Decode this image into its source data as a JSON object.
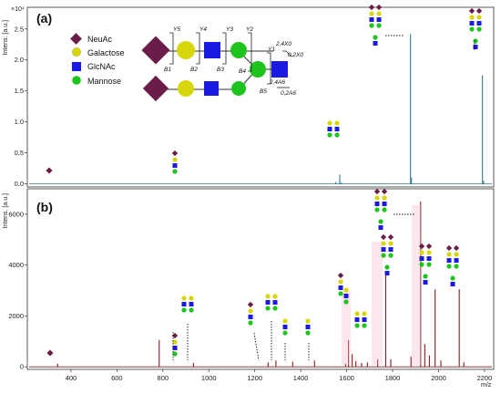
{
  "figure": {
    "panel_a_label": "(a)",
    "panel_b_label": "(b)",
    "legend": [
      {
        "name": "NeuAc",
        "shape": "diamond",
        "color": "#6b1d4a"
      },
      {
        "name": "Galactose",
        "shape": "circle",
        "color": "#d6d60a"
      },
      {
        "name": "GlcNAc",
        "shape": "square",
        "color": "#1a1ae0"
      },
      {
        "name": "Mannose",
        "shape": "circle",
        "color": "#1ec31e"
      }
    ],
    "fragment_labels": [
      "Y5",
      "Y4",
      "Y3",
      "Y2",
      "Y1",
      "B1",
      "B2",
      "B3",
      "B4",
      "B5",
      "2,4X0",
      "0,2X0",
      "2,4A6",
      "0,2A6"
    ]
  },
  "chart_data": [
    {
      "type": "line",
      "panel": "(a)",
      "ylabel": "Intens. [a.u.]",
      "y_scale_label": "×10⁴",
      "xlim": [
        210,
        2240
      ],
      "ylim": [
        -0.05,
        2.85
      ],
      "yticks": [
        0.0,
        0.5,
        1.0,
        1.5,
        2.0,
        2.5
      ],
      "ytick_labels": [
        "0.0",
        "0.5",
        "1.0",
        "1.5",
        "2.0",
        "2.5"
      ],
      "line_color": "#2a7f8f",
      "peaks": [
        {
          "x": 1552,
          "y": 0.03
        },
        {
          "x": 1570,
          "y": 0.15
        },
        {
          "x": 1577,
          "y": 0.02
        },
        {
          "x": 1878,
          "y": 2.42
        },
        {
          "x": 1882,
          "y": 0.1
        },
        {
          "x": 2191,
          "y": 1.75
        },
        {
          "x": 2196,
          "y": 0.05
        }
      ]
    },
    {
      "type": "line",
      "panel": "(b)",
      "ylabel": "Intens. [a.u.]",
      "xlabel": "m/z",
      "xlim": [
        210,
        2240
      ],
      "ylim": [
        -100,
        7000
      ],
      "xticks": [
        400,
        600,
        800,
        1000,
        1200,
        1400,
        1600,
        1800,
        2000,
        2200
      ],
      "xtick_labels": [
        "400",
        "600",
        "800",
        "1000",
        "1200",
        "1400",
        "1600",
        "1800",
        "2000",
        "2200"
      ],
      "yticks": [
        0,
        2000,
        4000,
        6000
      ],
      "ytick_labels": [
        "0",
        "2000",
        "4000",
        "6000"
      ],
      "line_color": "#8b1a1a",
      "peaks": [
        {
          "x": 342,
          "y": 120
        },
        {
          "x": 784,
          "y": 1050
        },
        {
          "x": 933,
          "y": 150
        },
        {
          "x": 1258,
          "y": 180
        },
        {
          "x": 1292,
          "y": 250
        },
        {
          "x": 1365,
          "y": 200
        },
        {
          "x": 1460,
          "y": 250
        },
        {
          "x": 1595,
          "y": 120
        },
        {
          "x": 1608,
          "y": 1050
        },
        {
          "x": 1624,
          "y": 500
        },
        {
          "x": 1640,
          "y": 220
        },
        {
          "x": 1665,
          "y": 150
        },
        {
          "x": 1690,
          "y": 180
        },
        {
          "x": 1735,
          "y": 300
        },
        {
          "x": 1770,
          "y": 3600
        },
        {
          "x": 1792,
          "y": 300
        },
        {
          "x": 1880,
          "y": 400
        },
        {
          "x": 1922,
          "y": 6500
        },
        {
          "x": 1940,
          "y": 900
        },
        {
          "x": 1960,
          "y": 450
        },
        {
          "x": 1985,
          "y": 3050
        },
        {
          "x": 2010,
          "y": 250
        },
        {
          "x": 2090,
          "y": 3050
        },
        {
          "x": 2110,
          "y": 180
        }
      ]
    }
  ]
}
